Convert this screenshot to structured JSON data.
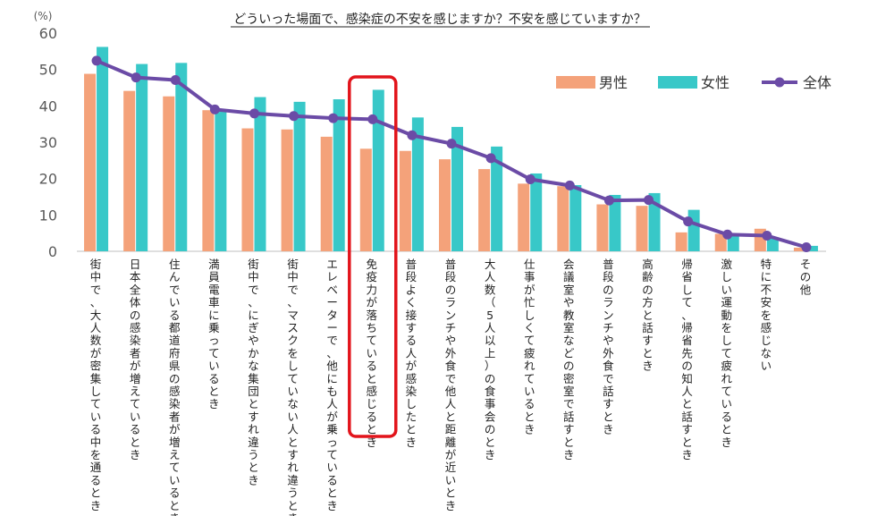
{
  "chart_data": {
    "type": "bar",
    "title": "どういった場面で、感染症の不安を感じますか？不安を感じていますか？",
    "ylabel": "(%)",
    "ylim": [
      0,
      60
    ],
    "yticks": [
      0,
      10,
      20,
      30,
      40,
      50,
      60
    ],
    "grid": false,
    "legend_position": "top-right",
    "highlighted_category_index": 7,
    "highlight_color": "#e2141b",
    "categories": [
      "街中で、大人数が密集している中を通るとき",
      "日本全体の感染者が増えているとき",
      "住んでいる都道府県の感染者が増えているとき",
      "満員電車に乗っているとき",
      "街中で、にぎやかな集団とすれ違うとき",
      "街中で、マスクをしていない人とすれ違うとき",
      "エレベーターで、他にも人が乗っているとき",
      "免疫力が落ちていると感じるとき",
      "普段よく接する人が感染したとき",
      "普段のランチや外食で他人と距離が近いとき",
      "大人数（5人以上）の食事会のとき",
      "仕事が忙しくて疲れているとき",
      "会議室や教室などの密室で話すとき",
      "普段のランチや外食で話すとき",
      "高齢の方と話すとき",
      "帰省して、帰省先の知人と話すとき",
      "激しい運動をして疲れているとき",
      "特に不安を感じない",
      "その他"
    ],
    "series": [
      {
        "name": "男性",
        "type": "bar",
        "color": "#f4a27a",
        "values": [
          48.8,
          44.1,
          42.6,
          38.8,
          33.8,
          33.5,
          31.5,
          28.2,
          27.6,
          25.3,
          22.6,
          18.6,
          17.9,
          12.9,
          12.5,
          5.2,
          4.8,
          6.2,
          1.0
        ]
      },
      {
        "name": "女性",
        "type": "bar",
        "color": "#38c8c8",
        "values": [
          56.2,
          51.5,
          51.8,
          39.0,
          42.4,
          41.1,
          41.8,
          44.4,
          36.8,
          34.2,
          28.8,
          21.4,
          18.2,
          15.5,
          16.0,
          11.4,
          4.6,
          3.6,
          1.5
        ]
      },
      {
        "name": "全体",
        "type": "line",
        "color": "#6b4ba6",
        "values": [
          52.4,
          47.8,
          47.1,
          39.0,
          37.9,
          37.2,
          36.6,
          36.3,
          31.9,
          29.6,
          25.6,
          19.8,
          18.1,
          14.0,
          14.1,
          8.2,
          4.6,
          4.3,
          1.1
        ]
      }
    ]
  }
}
